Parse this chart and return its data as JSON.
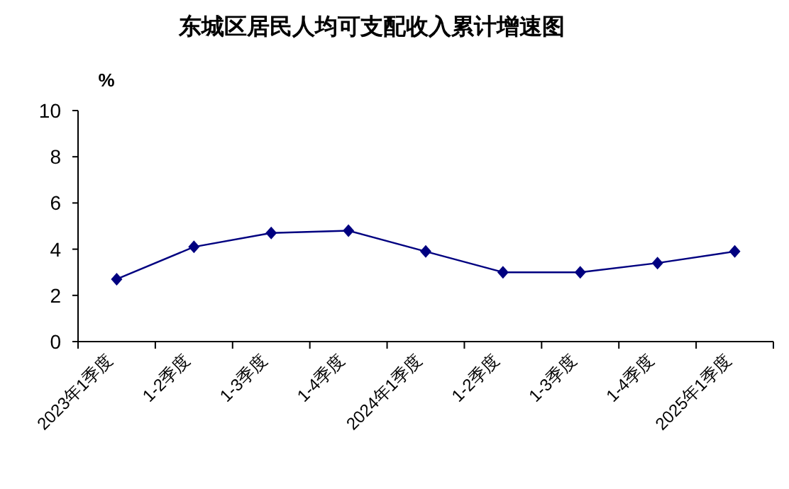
{
  "chart_data": {
    "type": "line",
    "title": "东城区居民人均可支配收入累计增速图",
    "ylabel": "%",
    "categories": [
      "2023年1季度",
      "1-2季度",
      "1-3季度",
      "1-4季度",
      "2024年1季度",
      "1-2季度",
      "1-3季度",
      "1-4季度",
      "2025年1季度"
    ],
    "values": [
      2.7,
      4.1,
      4.7,
      4.8,
      3.9,
      3.0,
      3.0,
      3.4,
      3.9
    ],
    "color": "#000080",
    "marker": "diamond",
    "line_style": "solid",
    "ylim": [
      0,
      10
    ],
    "yticks": [
      0,
      2,
      4,
      6,
      8,
      10
    ]
  }
}
